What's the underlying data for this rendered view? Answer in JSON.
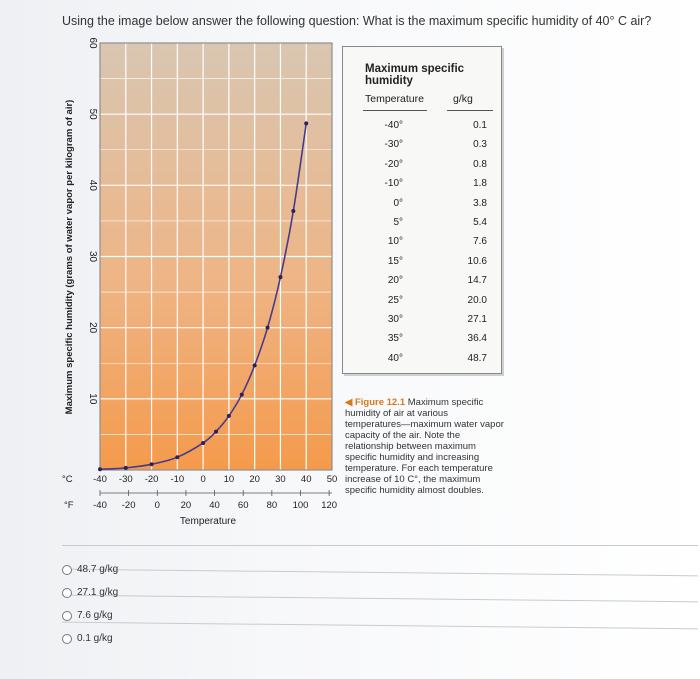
{
  "question": "Using the image below answer the following question: What is the maximum specific humidity of 40° C air?",
  "chart_data": {
    "type": "line",
    "title": "",
    "ylabel": "Maximum specific humidity (grams of water vapor per kilogram of air)",
    "xlabel": "Temperature",
    "ylim": [
      0,
      60
    ],
    "yticks": [
      "60",
      "50",
      "40",
      "30",
      "20",
      "10"
    ],
    "celsius_unit": "°C",
    "celsius_ticks": [
      "-40",
      "-30",
      "-20",
      "-10",
      "0",
      "10",
      "20",
      "30",
      "40",
      "50"
    ],
    "fahrenheit_unit": "°F",
    "fahrenheit_ticks": [
      "-40",
      "-20",
      "0",
      "20",
      "40",
      "60",
      "80",
      "100",
      "120"
    ],
    "series": [
      {
        "x": [
          -40,
          -30,
          -20,
          -10,
          0,
          5,
          10,
          15,
          20,
          25,
          30,
          35,
          40
        ],
        "values": [
          0.1,
          0.3,
          0.8,
          1.8,
          3.8,
          5.4,
          7.6,
          10.6,
          14.7,
          20.0,
          27.1,
          36.4,
          48.7
        ]
      }
    ],
    "grid": true,
    "colors": {
      "line": "#4a3a8a",
      "marker": "#2a2358",
      "fill_top": "#d5c0a8",
      "fill_bottom": "#f4a056",
      "grid": "#ffffff"
    }
  },
  "table": {
    "title": "Maximum specific humidity",
    "col_temp": "Temperature",
    "col_value": "g/kg",
    "rows": [
      {
        "t": "-40°",
        "v": "0.1"
      },
      {
        "t": "-30°",
        "v": "0.3"
      },
      {
        "t": "-20°",
        "v": "0.8"
      },
      {
        "t": "-10°",
        "v": "1.8"
      },
      {
        "t": "0°",
        "v": "3.8"
      },
      {
        "t": "5°",
        "v": "5.4"
      },
      {
        "t": "10°",
        "v": "7.6"
      },
      {
        "t": "15°",
        "v": "10.6"
      },
      {
        "t": "20°",
        "v": "14.7"
      },
      {
        "t": "25°",
        "v": "20.0"
      },
      {
        "t": "30°",
        "v": "27.1"
      },
      {
        "t": "35°",
        "v": "36.4"
      },
      {
        "t": "40°",
        "v": "48.7"
      }
    ]
  },
  "caption": {
    "figure_label": "◀ Figure 12.1",
    "text": "Maximum specific humidity of air at various temperatures—maximum water vapor capacity of the air. Note the relationship between maximum specific humidity and increasing temperature. For each temperature increase of 10 C°, the maximum specific humidity almost doubles."
  },
  "options": [
    {
      "label": "48.7 g/kg"
    },
    {
      "label": "27.1 g/kg"
    },
    {
      "label": "7.6 g/kg"
    },
    {
      "label": "0.1 g/kg"
    }
  ]
}
